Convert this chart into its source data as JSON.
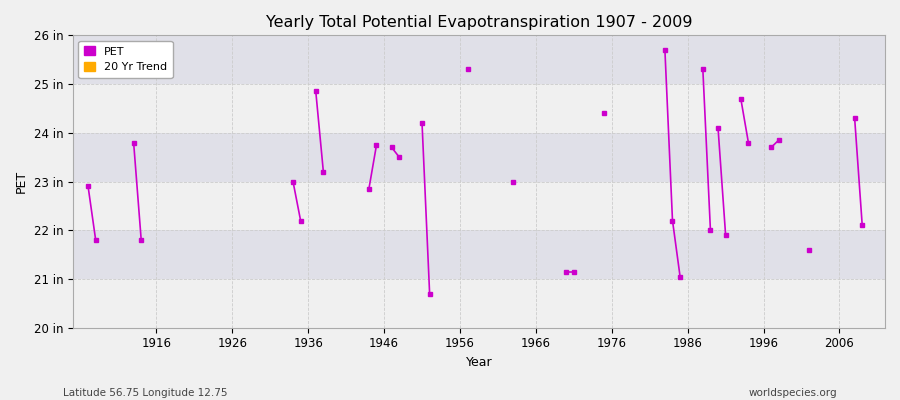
{
  "title": "Yearly Total Potential Evapotranspiration 1907 - 2009",
  "xlabel": "Year",
  "ylabel": "PET",
  "subtitle_left": "Latitude 56.75 Longitude 12.75",
  "subtitle_right": "worldspecies.org",
  "ylim": [
    20,
    26
  ],
  "yticks": [
    20,
    21,
    22,
    23,
    24,
    25,
    26
  ],
  "ytick_labels": [
    "20 in",
    "21 in",
    "22 in",
    "23 in",
    "24 in",
    "25 in",
    "26 in"
  ],
  "xticks": [
    1916,
    1926,
    1936,
    1946,
    1956,
    1966,
    1976,
    1986,
    1996,
    2006
  ],
  "xlim": [
    1905,
    2012
  ],
  "background_color": "#f0f0f0",
  "plot_bg_color": "#f0f0f0",
  "band_light": "#f0f0f0",
  "band_dark": "#e0e0e8",
  "grid_color": "#cccccc",
  "pet_color": "#cc00cc",
  "trend_color": "#ffaa00",
  "connected_segments": [
    [
      [
        1907,
        22.9
      ],
      [
        1908,
        21.8
      ]
    ],
    [
      [
        1913,
        23.8
      ],
      [
        1914,
        21.8
      ]
    ],
    [
      [
        1934,
        23.0
      ],
      [
        1935,
        22.2
      ]
    ],
    [
      [
        1937,
        24.85
      ],
      [
        1938,
        23.2
      ]
    ],
    [
      [
        1944,
        22.85
      ],
      [
        1945,
        23.75
      ]
    ],
    [
      [
        1947,
        23.7
      ],
      [
        1948,
        23.5
      ]
    ],
    [
      [
        1951,
        24.2
      ],
      [
        1952,
        20.7
      ]
    ],
    [
      [
        1957,
        25.3
      ]
    ],
    [
      [
        1963,
        23.0
      ]
    ],
    [
      [
        1970,
        21.15
      ],
      [
        1971,
        21.15
      ]
    ],
    [
      [
        1975,
        24.4
      ]
    ],
    [
      [
        1983,
        25.7
      ],
      [
        1984,
        22.2
      ],
      [
        1985,
        21.05
      ]
    ],
    [
      [
        1988,
        25.3
      ],
      [
        1989,
        22.0
      ]
    ],
    [
      [
        1990,
        24.1
      ],
      [
        1991,
        21.9
      ]
    ],
    [
      [
        1993,
        24.7
      ],
      [
        1994,
        23.8
      ]
    ],
    [
      [
        1997,
        23.7
      ],
      [
        1998,
        23.85
      ]
    ],
    [
      [
        2002,
        21.6
      ]
    ],
    [
      [
        2008,
        24.3
      ],
      [
        2009,
        22.1
      ]
    ]
  ]
}
